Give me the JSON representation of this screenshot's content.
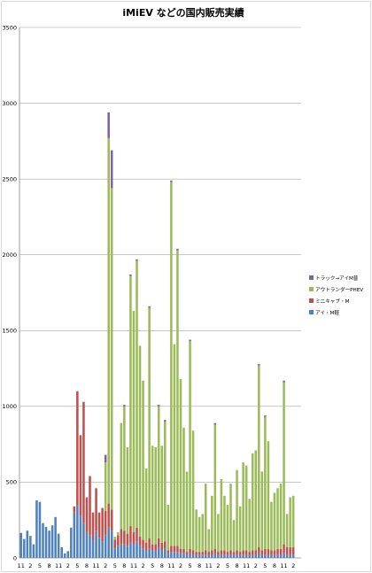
{
  "chart_data": {
    "type": "bar",
    "stacked": true,
    "title": "iMiEV などの国内販売実績",
    "x_tick_labels": [
      "11",
      "2",
      "5",
      "8",
      "11",
      "2",
      "5",
      "8",
      "11",
      "2",
      "5",
      "8",
      "11",
      "2",
      "5",
      "8",
      "11",
      "2",
      "5",
      "8",
      "11",
      "2",
      "5",
      "8",
      "11",
      "2",
      "5",
      "8",
      "11",
      "2"
    ],
    "ylim": [
      0,
      3500
    ],
    "y_ticks": [
      0,
      500,
      1000,
      1500,
      2000,
      2500,
      3000,
      3500
    ],
    "grid": true,
    "legend_position": "right",
    "series": [
      {
        "name": "アイ・M軽",
        "color": "#4F81BD",
        "values": [
          165,
          125,
          180,
          145,
          90,
          380,
          370,
          230,
          205,
          180,
          215,
          270,
          160,
          70,
          30,
          45,
          200,
          300,
          350,
          280,
          230,
          170,
          150,
          120,
          180,
          130,
          110,
          150,
          200,
          180,
          60,
          80,
          90,
          90,
          80,
          100,
          90,
          110,
          80,
          60,
          50,
          60,
          50,
          50,
          70,
          50,
          60,
          30,
          40,
          40,
          40,
          30,
          30,
          20,
          30,
          20,
          20,
          20,
          20,
          20,
          20,
          20,
          30,
          20,
          20,
          20,
          20,
          20,
          20,
          20,
          20,
          20,
          20,
          20,
          20,
          20,
          30,
          20,
          20,
          20,
          20,
          20,
          20,
          20,
          30,
          20,
          20,
          20
        ]
      },
      {
        "name": "ミニキャブ・M",
        "color": "#C0504D",
        "values": [
          0,
          0,
          0,
          0,
          0,
          0,
          0,
          0,
          0,
          0,
          0,
          0,
          0,
          0,
          0,
          0,
          0,
          40,
          750,
          530,
          800,
          230,
          390,
          180,
          280,
          170,
          220,
          160,
          160,
          140,
          60,
          70,
          100,
          90,
          80,
          110,
          80,
          90,
          60,
          60,
          50,
          70,
          40,
          40,
          60,
          50,
          50,
          20,
          40,
          40,
          40,
          30,
          30,
          20,
          30,
          30,
          20,
          20,
          20,
          30,
          20,
          30,
          30,
          20,
          30,
          30,
          20,
          30,
          20,
          30,
          20,
          30,
          30,
          20,
          30,
          30,
          40,
          30,
          40,
          40,
          30,
          30,
          40,
          40,
          60,
          50,
          50,
          50
        ]
      },
      {
        "name": "アウトランダーPHEV",
        "color": "#9BBB59",
        "values": [
          0,
          0,
          0,
          0,
          0,
          0,
          0,
          0,
          0,
          0,
          0,
          0,
          0,
          0,
          0,
          0,
          0,
          0,
          0,
          0,
          0,
          0,
          0,
          0,
          0,
          0,
          0,
          320,
          2410,
          2120,
          20,
          20,
          700,
          820,
          570,
          1650,
          1460,
          1760,
          1260,
          1050,
          490,
          1520,
          650,
          640,
          870,
          640,
          790,
          300,
          2400,
          1330,
          1950,
          1120,
          800,
          530,
          1370,
          790,
          280,
          230,
          250,
          440,
          150,
          360,
          820,
          250,
          470,
          360,
          310,
          440,
          210,
          530,
          300,
          580,
          560,
          350,
          640,
          660,
          1200,
          520,
          870,
          710,
          320,
          380,
          400,
          430,
          1070,
          220,
          330,
          340
        ]
      },
      {
        "name": "トラック→アイM普",
        "color": "#8064A2",
        "values": [
          0,
          0,
          0,
          0,
          0,
          0,
          0,
          0,
          0,
          0,
          0,
          0,
          0,
          0,
          0,
          0,
          0,
          0,
          0,
          0,
          0,
          0,
          0,
          0,
          0,
          0,
          0,
          50,
          170,
          250,
          0,
          0,
          0,
          10,
          0,
          10,
          0,
          10,
          0,
          0,
          0,
          10,
          0,
          0,
          10,
          0,
          10,
          0,
          10,
          0,
          10,
          0,
          0,
          0,
          10,
          0,
          0,
          0,
          0,
          0,
          0,
          0,
          10,
          0,
          0,
          0,
          0,
          0,
          0,
          0,
          0,
          0,
          0,
          0,
          0,
          0,
          10,
          0,
          10,
          0,
          0,
          0,
          0,
          0,
          10,
          0,
          0,
          0
        ]
      }
    ]
  }
}
